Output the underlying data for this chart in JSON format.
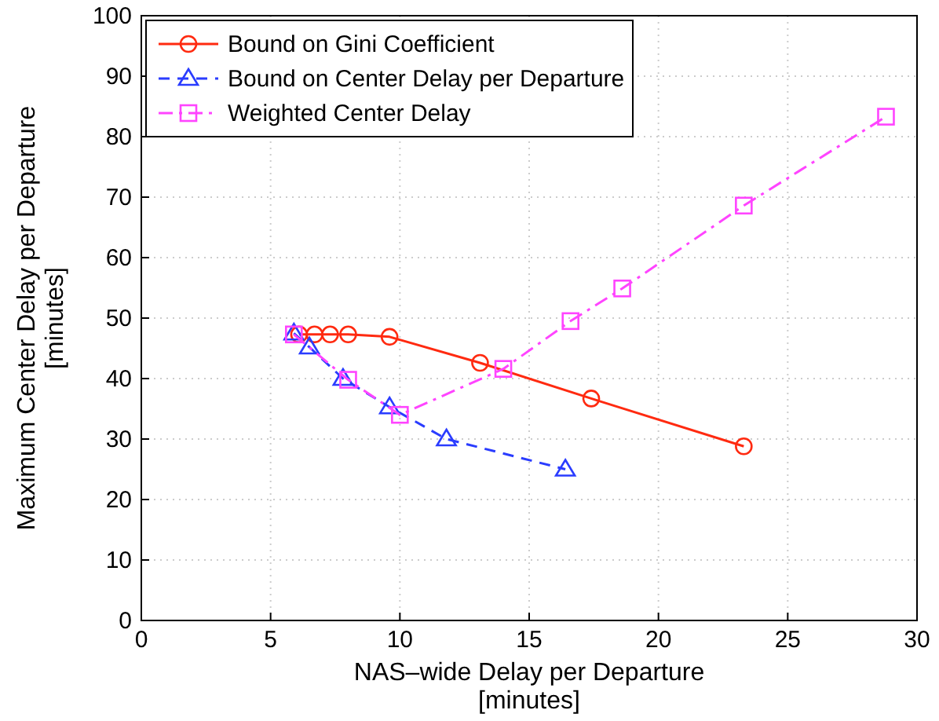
{
  "chart_data": {
    "type": "line",
    "xlabel": "NAS–wide Delay per Departure\n[minutes]",
    "ylabel": "Maximum Center Delay per Departure\n[minutes]",
    "xlim": [
      0,
      30
    ],
    "xticks": [
      0,
      5,
      10,
      15,
      20,
      25,
      30
    ],
    "ylim": [
      0,
      100
    ],
    "yticks": [
      0,
      10,
      20,
      30,
      40,
      50,
      60,
      70,
      80,
      90,
      100
    ],
    "grid": true,
    "legend": "top left",
    "series": [
      {
        "name": "Bound on Gini Coefficient",
        "color": "#ff2a10",
        "marker": "circle",
        "line_style": "solid",
        "x": [
          6.1,
          6.7,
          7.3,
          8.0,
          9.6,
          13.1,
          17.4,
          23.3
        ],
        "values": [
          47.3,
          47.3,
          47.3,
          47.3,
          46.9,
          42.6,
          36.7,
          28.8
        ]
      },
      {
        "name": "Bound on Center Delay per Departure",
        "color": "#2a3cff",
        "marker": "triangle",
        "line_style": "dashed",
        "x": [
          5.9,
          6.5,
          7.8,
          9.6,
          11.8,
          16.4
        ],
        "values": [
          47.5,
          45.2,
          40,
          35.3,
          30,
          25
        ]
      },
      {
        "name": "Weighted Center Delay",
        "color": "#ff44ff",
        "marker": "square",
        "line_style": "dashdot",
        "x": [
          5.9,
          8.0,
          10.0,
          14.0,
          16.6,
          18.6,
          23.3,
          28.8
        ],
        "values": [
          47.3,
          39.8,
          34,
          41.6,
          49.5,
          54.9,
          68.6,
          83.3
        ]
      }
    ]
  }
}
